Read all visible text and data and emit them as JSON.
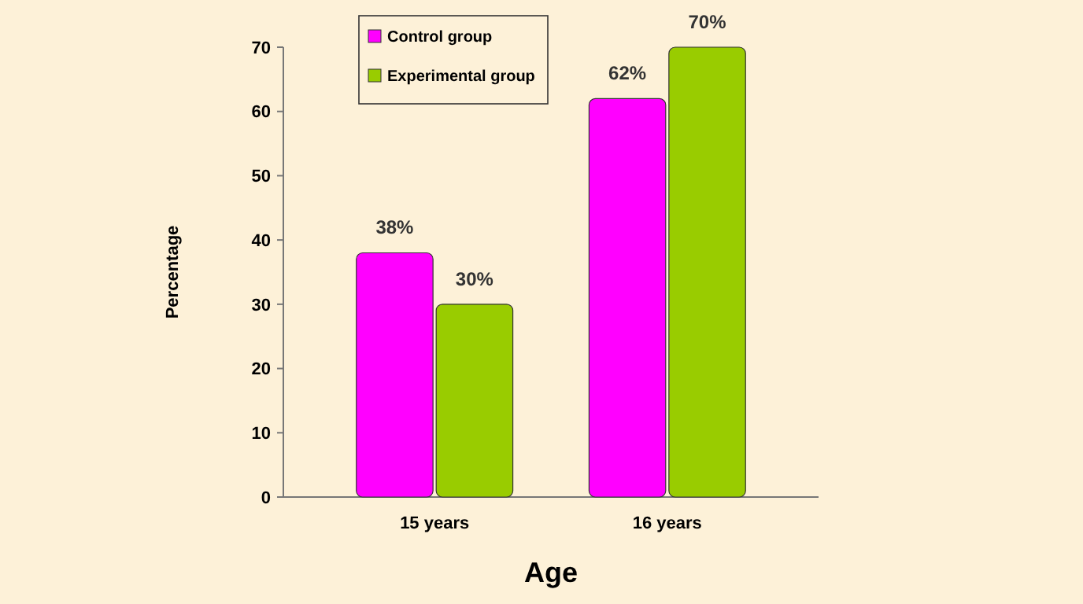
{
  "chart_data": {
    "type": "bar",
    "xlabel": "Age",
    "ylabel": "Percentage",
    "categories": [
      "15 years",
      "16 years"
    ],
    "series": [
      {
        "name": "Control group",
        "color": "#ff00ff",
        "values": [
          38,
          62
        ],
        "value_labels": [
          "38%",
          "62%"
        ]
      },
      {
        "name": "Experimental group",
        "color": "#99cc00",
        "values": [
          30,
          70
        ],
        "value_labels": [
          "30%",
          "70%"
        ]
      }
    ],
    "ylim": [
      0,
      70
    ],
    "yticks": [
      0,
      10,
      20,
      30,
      40,
      50,
      60,
      70
    ],
    "legend": "top left"
  }
}
